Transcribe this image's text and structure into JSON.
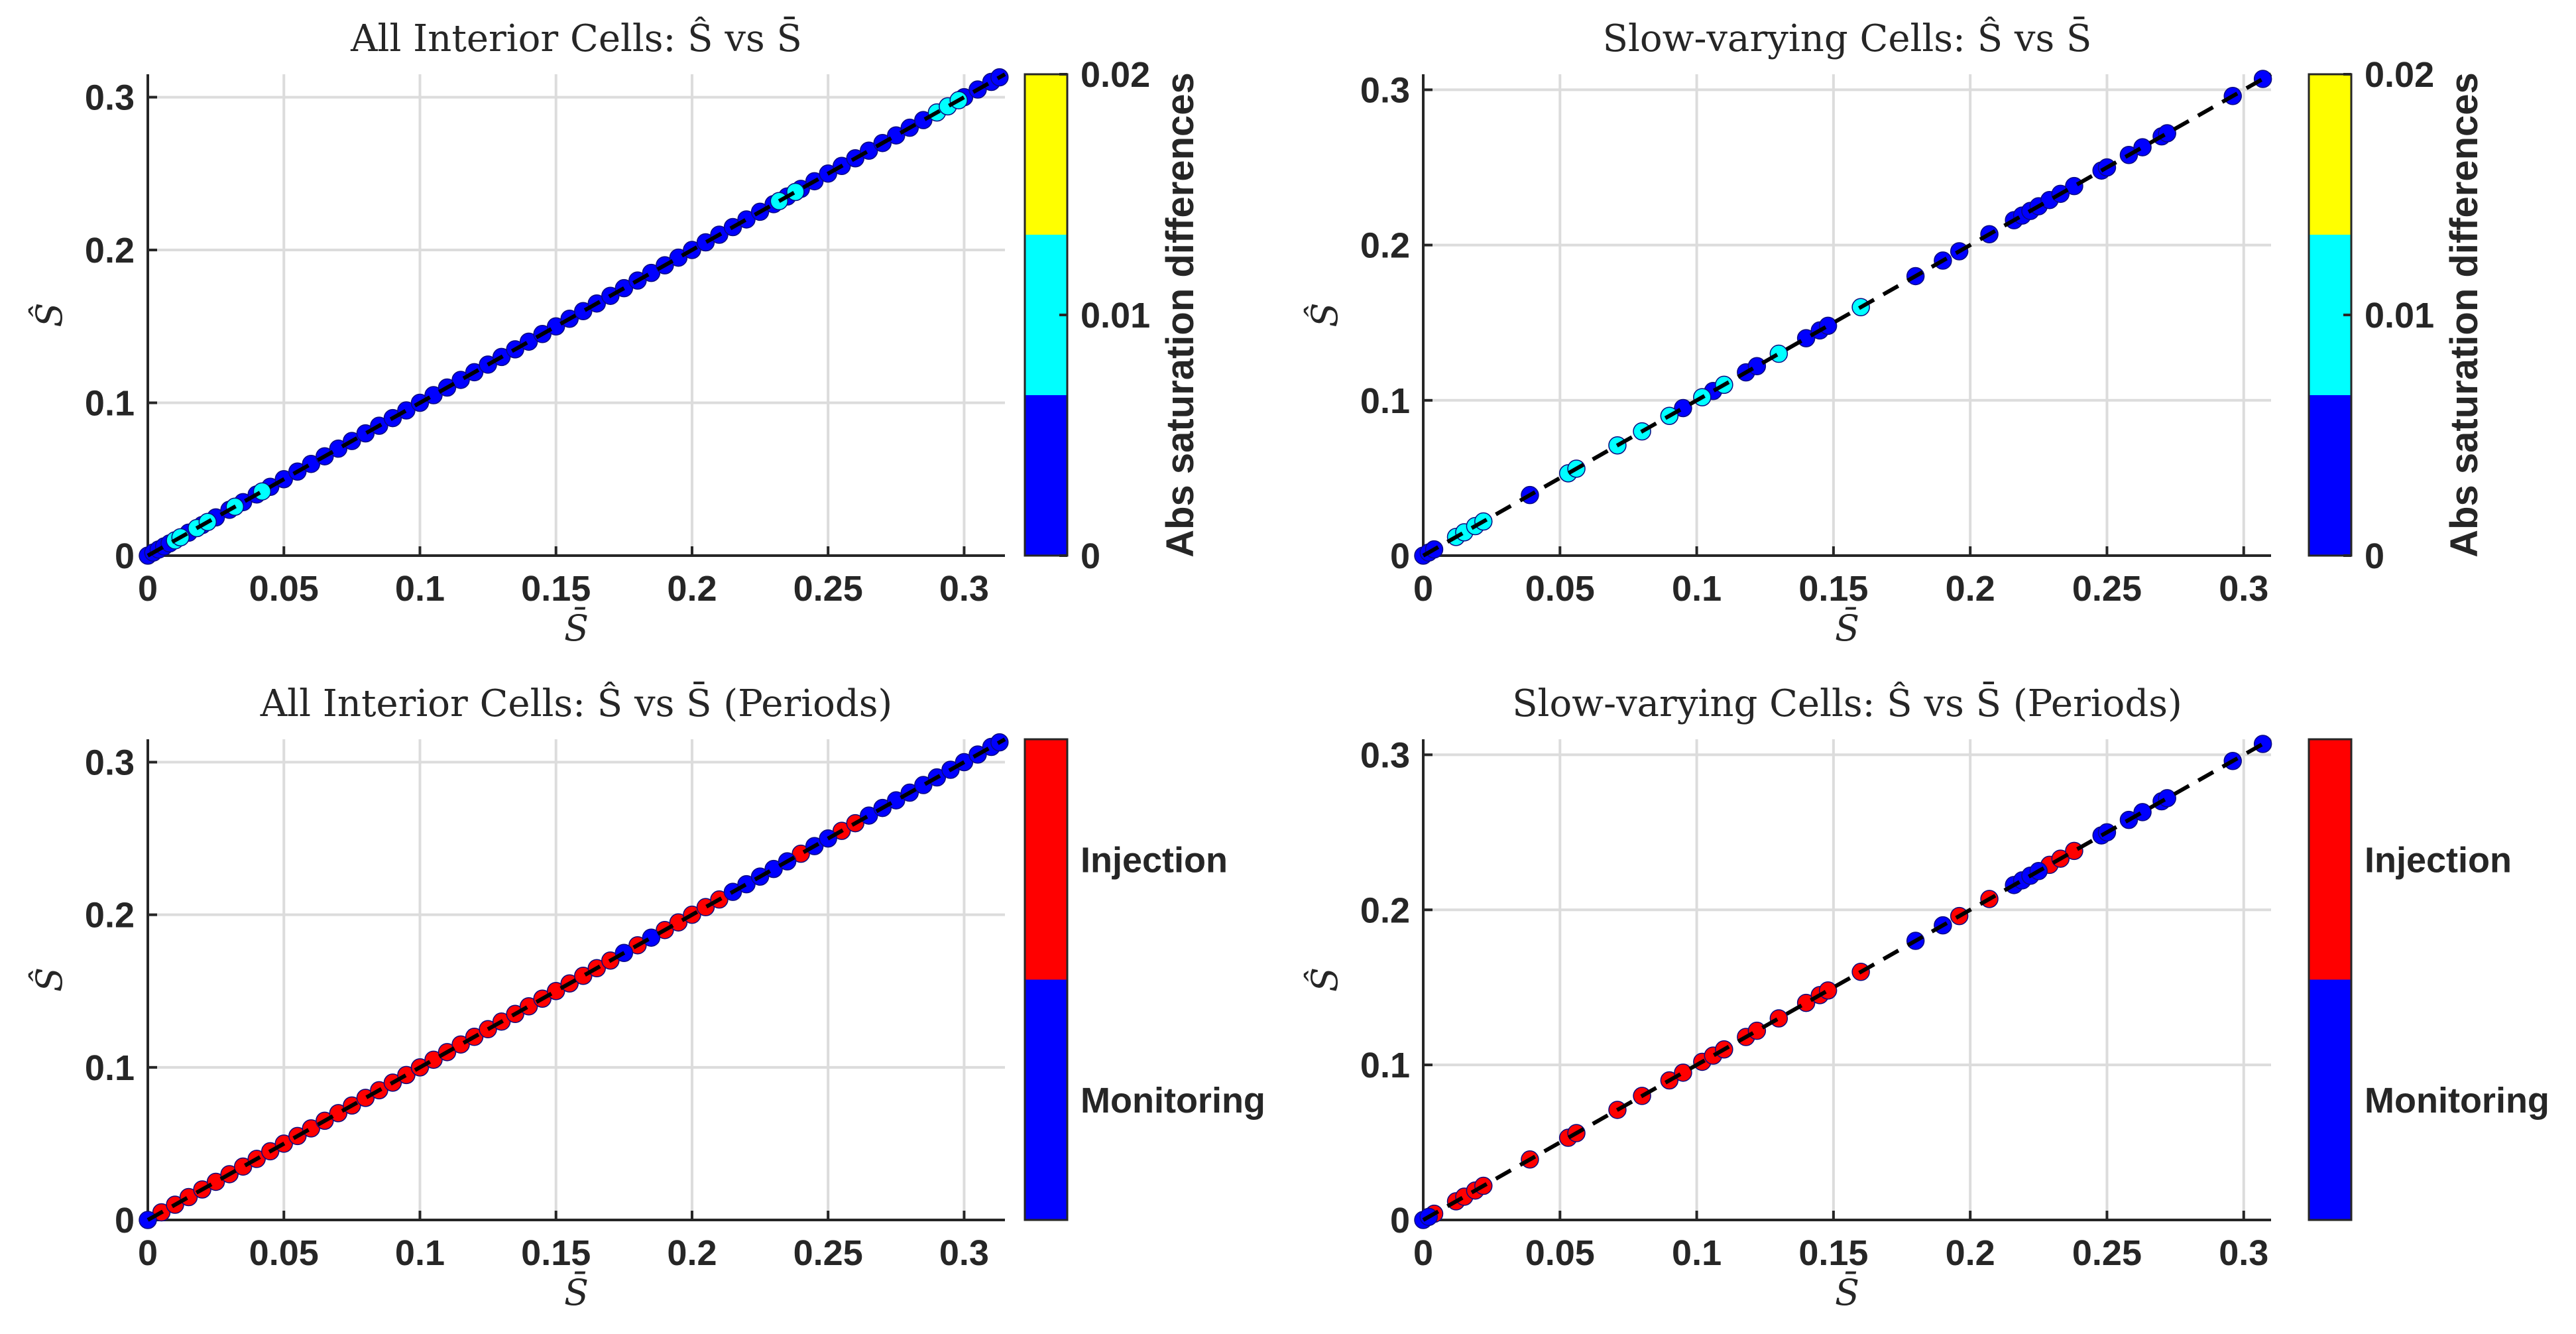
{
  "chart_data": [
    {
      "id": "p1",
      "type": "scatter",
      "title": "All Interior Cells: Ŝ vs S̄",
      "xlabel": "S̄",
      "ylabel": "Ŝ",
      "xlim": [
        0,
        0.315
      ],
      "ylim": [
        0,
        0.315
      ],
      "xticks": [
        "0",
        "0.05",
        "0.1",
        "0.15",
        "0.2",
        "0.25",
        "0.3"
      ],
      "yticks": [
        "0",
        "0.1",
        "0.2",
        "0.3"
      ],
      "reference_line": "y = x (dashed)",
      "colorbar": {
        "label": "Abs saturation differences",
        "ticks": [
          "0",
          "0.01",
          "0.02"
        ],
        "colors": [
          "#0000ff",
          "#00ffff",
          "#ffff00"
        ]
      },
      "series": [
        {
          "name": "blue",
          "color": "#0000ff",
          "points": [
            [
              0.0,
              0.0
            ],
            [
              0.002,
              0.002
            ],
            [
              0.004,
              0.004
            ],
            [
              0.006,
              0.006
            ],
            [
              0.008,
              0.008
            ],
            [
              0.015,
              0.015
            ],
            [
              0.02,
              0.02
            ],
            [
              0.025,
              0.025
            ],
            [
              0.03,
              0.03
            ],
            [
              0.035,
              0.035
            ],
            [
              0.04,
              0.04
            ],
            [
              0.045,
              0.045
            ],
            [
              0.05,
              0.05
            ],
            [
              0.055,
              0.055
            ],
            [
              0.06,
              0.06
            ],
            [
              0.065,
              0.065
            ],
            [
              0.07,
              0.07
            ],
            [
              0.075,
              0.075
            ],
            [
              0.08,
              0.08
            ],
            [
              0.085,
              0.085
            ],
            [
              0.09,
              0.09
            ],
            [
              0.095,
              0.095
            ],
            [
              0.1,
              0.1
            ],
            [
              0.105,
              0.105
            ],
            [
              0.11,
              0.11
            ],
            [
              0.115,
              0.115
            ],
            [
              0.12,
              0.12
            ],
            [
              0.125,
              0.125
            ],
            [
              0.13,
              0.13
            ],
            [
              0.135,
              0.135
            ],
            [
              0.14,
              0.14
            ],
            [
              0.145,
              0.145
            ],
            [
              0.15,
              0.15
            ],
            [
              0.155,
              0.155
            ],
            [
              0.16,
              0.16
            ],
            [
              0.165,
              0.165
            ],
            [
              0.17,
              0.17
            ],
            [
              0.175,
              0.175
            ],
            [
              0.18,
              0.18
            ],
            [
              0.185,
              0.185
            ],
            [
              0.19,
              0.19
            ],
            [
              0.195,
              0.195
            ],
            [
              0.2,
              0.2
            ],
            [
              0.205,
              0.205
            ],
            [
              0.21,
              0.21
            ],
            [
              0.215,
              0.215
            ],
            [
              0.22,
              0.22
            ],
            [
              0.225,
              0.225
            ],
            [
              0.23,
              0.23
            ],
            [
              0.235,
              0.235
            ],
            [
              0.24,
              0.24
            ],
            [
              0.245,
              0.245
            ],
            [
              0.25,
              0.25
            ],
            [
              0.255,
              0.255
            ],
            [
              0.26,
              0.26
            ],
            [
              0.265,
              0.265
            ],
            [
              0.27,
              0.27
            ],
            [
              0.275,
              0.275
            ],
            [
              0.28,
              0.28
            ],
            [
              0.285,
              0.285
            ],
            [
              0.3,
              0.3
            ],
            [
              0.305,
              0.305
            ],
            [
              0.31,
              0.31
            ],
            [
              0.313,
              0.313
            ]
          ]
        },
        {
          "name": "cyan",
          "color": "#00ffff",
          "points": [
            [
              0.01,
              0.01
            ],
            [
              0.012,
              0.012
            ],
            [
              0.018,
              0.018
            ],
            [
              0.022,
              0.022
            ],
            [
              0.032,
              0.032
            ],
            [
              0.042,
              0.042
            ],
            [
              0.232,
              0.232
            ],
            [
              0.238,
              0.238
            ],
            [
              0.29,
              0.29
            ],
            [
              0.294,
              0.294
            ],
            [
              0.298,
              0.298
            ]
          ]
        }
      ]
    },
    {
      "id": "p2",
      "type": "scatter",
      "title": "Slow-varying Cells: Ŝ vs S̄",
      "xlabel": "S̄",
      "ylabel": "Ŝ",
      "xlim": [
        0,
        0.31
      ],
      "ylim": [
        0,
        0.31
      ],
      "xticks": [
        "0",
        "0.05",
        "0.1",
        "0.15",
        "0.2",
        "0.25",
        "0.3"
      ],
      "yticks": [
        "0",
        "0.1",
        "0.2",
        "0.3"
      ],
      "reference_line": "y = x (dashed)",
      "colorbar": {
        "label": "Abs saturation differences",
        "ticks": [
          "0",
          "0.01",
          "0.02"
        ],
        "colors": [
          "#0000ff",
          "#00ffff",
          "#ffff00"
        ]
      },
      "series": [
        {
          "name": "blue",
          "color": "#0000ff",
          "points": [
            [
              0.0,
              0.0
            ],
            [
              0.002,
              0.002
            ],
            [
              0.004,
              0.004
            ],
            [
              0.039,
              0.039
            ],
            [
              0.095,
              0.095
            ],
            [
              0.106,
              0.106
            ],
            [
              0.118,
              0.118
            ],
            [
              0.122,
              0.122
            ],
            [
              0.14,
              0.14
            ],
            [
              0.145,
              0.145
            ],
            [
              0.148,
              0.148
            ],
            [
              0.18,
              0.18
            ],
            [
              0.19,
              0.19
            ],
            [
              0.196,
              0.196
            ],
            [
              0.207,
              0.207
            ],
            [
              0.216,
              0.216
            ],
            [
              0.219,
              0.219
            ],
            [
              0.222,
              0.222
            ],
            [
              0.225,
              0.225
            ],
            [
              0.229,
              0.229
            ],
            [
              0.233,
              0.233
            ],
            [
              0.238,
              0.238
            ],
            [
              0.248,
              0.248
            ],
            [
              0.25,
              0.25
            ],
            [
              0.258,
              0.258
            ],
            [
              0.263,
              0.263
            ],
            [
              0.27,
              0.27
            ],
            [
              0.272,
              0.272
            ],
            [
              0.296,
              0.296
            ],
            [
              0.307,
              0.307
            ]
          ]
        },
        {
          "name": "cyan",
          "color": "#00ffff",
          "points": [
            [
              0.012,
              0.012
            ],
            [
              0.015,
              0.015
            ],
            [
              0.019,
              0.019
            ],
            [
              0.022,
              0.022
            ],
            [
              0.053,
              0.053
            ],
            [
              0.056,
              0.056
            ],
            [
              0.071,
              0.071
            ],
            [
              0.08,
              0.08
            ],
            [
              0.09,
              0.09
            ],
            [
              0.102,
              0.102
            ],
            [
              0.11,
              0.11
            ],
            [
              0.13,
              0.13
            ],
            [
              0.16,
              0.16
            ]
          ]
        }
      ]
    },
    {
      "id": "p3",
      "type": "scatter",
      "title": "All Interior Cells: Ŝ vs S̄ (Periods)",
      "xlabel": "S̄",
      "ylabel": "Ŝ",
      "xlim": [
        0,
        0.315
      ],
      "ylim": [
        0,
        0.315
      ],
      "xticks": [
        "0",
        "0.05",
        "0.1",
        "0.15",
        "0.2",
        "0.25",
        "0.3"
      ],
      "yticks": [
        "0",
        "0.1",
        "0.2",
        "0.3"
      ],
      "reference_line": "y = x (dashed)",
      "colorbar": {
        "label": "",
        "ticks": [
          "Monitoring",
          "Injection"
        ],
        "colors": [
          "#0000ff",
          "#ff0000"
        ]
      },
      "series": [
        {
          "name": "Injection",
          "color": "#ff0000",
          "points": [
            [
              0.005,
              0.005
            ],
            [
              0.01,
              0.01
            ],
            [
              0.015,
              0.015
            ],
            [
              0.02,
              0.02
            ],
            [
              0.025,
              0.025
            ],
            [
              0.03,
              0.03
            ],
            [
              0.035,
              0.035
            ],
            [
              0.04,
              0.04
            ],
            [
              0.045,
              0.045
            ],
            [
              0.05,
              0.05
            ],
            [
              0.055,
              0.055
            ],
            [
              0.06,
              0.06
            ],
            [
              0.065,
              0.065
            ],
            [
              0.07,
              0.07
            ],
            [
              0.075,
              0.075
            ],
            [
              0.08,
              0.08
            ],
            [
              0.085,
              0.085
            ],
            [
              0.09,
              0.09
            ],
            [
              0.095,
              0.095
            ],
            [
              0.1,
              0.1
            ],
            [
              0.105,
              0.105
            ],
            [
              0.11,
              0.11
            ],
            [
              0.115,
              0.115
            ],
            [
              0.12,
              0.12
            ],
            [
              0.125,
              0.125
            ],
            [
              0.13,
              0.13
            ],
            [
              0.135,
              0.135
            ],
            [
              0.14,
              0.14
            ],
            [
              0.145,
              0.145
            ],
            [
              0.15,
              0.15
            ],
            [
              0.155,
              0.155
            ],
            [
              0.16,
              0.16
            ],
            [
              0.165,
              0.165
            ],
            [
              0.17,
              0.17
            ],
            [
              0.18,
              0.18
            ],
            [
              0.19,
              0.19
            ],
            [
              0.195,
              0.195
            ],
            [
              0.2,
              0.2
            ],
            [
              0.205,
              0.205
            ],
            [
              0.21,
              0.21
            ],
            [
              0.24,
              0.24
            ],
            [
              0.255,
              0.255
            ],
            [
              0.26,
              0.26
            ]
          ]
        },
        {
          "name": "Monitoring",
          "color": "#0000ff",
          "points": [
            [
              0.0,
              0.0
            ],
            [
              0.175,
              0.175
            ],
            [
              0.185,
              0.185
            ],
            [
              0.215,
              0.215
            ],
            [
              0.22,
              0.22
            ],
            [
              0.225,
              0.225
            ],
            [
              0.23,
              0.23
            ],
            [
              0.235,
              0.235
            ],
            [
              0.245,
              0.245
            ],
            [
              0.25,
              0.25
            ],
            [
              0.265,
              0.265
            ],
            [
              0.27,
              0.27
            ],
            [
              0.275,
              0.275
            ],
            [
              0.28,
              0.28
            ],
            [
              0.285,
              0.285
            ],
            [
              0.29,
              0.29
            ],
            [
              0.295,
              0.295
            ],
            [
              0.3,
              0.3
            ],
            [
              0.305,
              0.305
            ],
            [
              0.31,
              0.31
            ],
            [
              0.313,
              0.313
            ]
          ]
        }
      ]
    },
    {
      "id": "p4",
      "type": "scatter",
      "title": "Slow-varying Cells: Ŝ vs S̄ (Periods)",
      "xlabel": "S̄",
      "ylabel": "Ŝ",
      "xlim": [
        0,
        0.31
      ],
      "ylim": [
        0,
        0.31
      ],
      "xticks": [
        "0",
        "0.05",
        "0.1",
        "0.15",
        "0.2",
        "0.25",
        "0.3"
      ],
      "yticks": [
        "0",
        "0.1",
        "0.2",
        "0.3"
      ],
      "reference_line": "y = x (dashed)",
      "colorbar": {
        "label": "",
        "ticks": [
          "Monitoring",
          "Injection"
        ],
        "colors": [
          "#0000ff",
          "#ff0000"
        ]
      },
      "series": [
        {
          "name": "Injection",
          "color": "#ff0000",
          "points": [
            [
              0.004,
              0.004
            ],
            [
              0.012,
              0.012
            ],
            [
              0.015,
              0.015
            ],
            [
              0.019,
              0.019
            ],
            [
              0.022,
              0.022
            ],
            [
              0.039,
              0.039
            ],
            [
              0.053,
              0.053
            ],
            [
              0.056,
              0.056
            ],
            [
              0.071,
              0.071
            ],
            [
              0.08,
              0.08
            ],
            [
              0.09,
              0.09
            ],
            [
              0.095,
              0.095
            ],
            [
              0.102,
              0.102
            ],
            [
              0.106,
              0.106
            ],
            [
              0.11,
              0.11
            ],
            [
              0.118,
              0.118
            ],
            [
              0.122,
              0.122
            ],
            [
              0.13,
              0.13
            ],
            [
              0.14,
              0.14
            ],
            [
              0.145,
              0.145
            ],
            [
              0.148,
              0.148
            ],
            [
              0.16,
              0.16
            ],
            [
              0.196,
              0.196
            ],
            [
              0.207,
              0.207
            ],
            [
              0.229,
              0.229
            ],
            [
              0.233,
              0.233
            ],
            [
              0.238,
              0.238
            ]
          ]
        },
        {
          "name": "Monitoring",
          "color": "#0000ff",
          "points": [
            [
              0.0,
              0.0
            ],
            [
              0.002,
              0.002
            ],
            [
              0.18,
              0.18
            ],
            [
              0.19,
              0.19
            ],
            [
              0.216,
              0.216
            ],
            [
              0.219,
              0.219
            ],
            [
              0.222,
              0.222
            ],
            [
              0.225,
              0.225
            ],
            [
              0.248,
              0.248
            ],
            [
              0.25,
              0.25
            ],
            [
              0.258,
              0.258
            ],
            [
              0.263,
              0.263
            ],
            [
              0.27,
              0.27
            ],
            [
              0.272,
              0.272
            ],
            [
              0.296,
              0.296
            ],
            [
              0.307,
              0.307
            ]
          ]
        }
      ]
    }
  ]
}
